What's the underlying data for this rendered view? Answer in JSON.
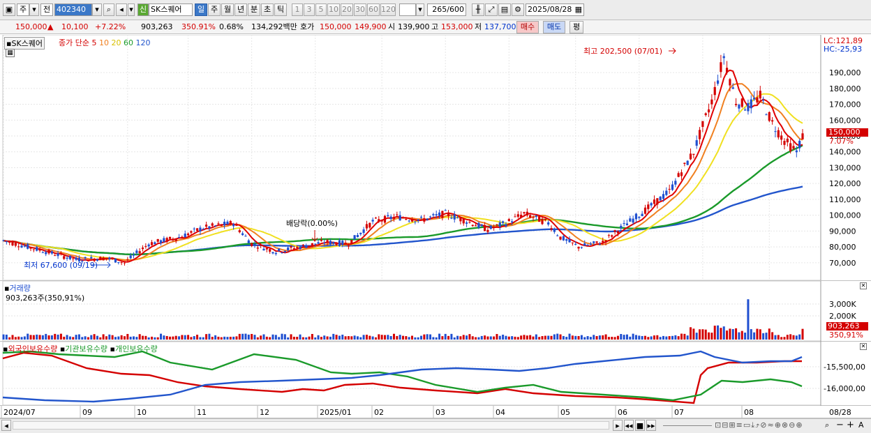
{
  "toolbar": {
    "market_label": "주",
    "prev_label": "전",
    "code": "402340",
    "stock_badge": "신",
    "stock_name": "SK스퀘어",
    "periods": [
      "일",
      "주",
      "월",
      "년",
      "분",
      "초",
      "틱"
    ],
    "intervals": [
      "1",
      "3",
      "5",
      "10",
      "20",
      "30",
      "60",
      "120"
    ],
    "count": "265",
    "count_total": "/600",
    "date": "2025/08/28"
  },
  "quote": {
    "price": "150,000",
    "change": "10,100",
    "change_pct": "+7.22%",
    "volume": "903,263",
    "volume_ratio": "350.91%",
    "turnover": "0.68%",
    "amount": "134,292백만",
    "bid_label": "호가",
    "bid1": "150,000",
    "bid2": "149,900",
    "open_label": "시",
    "open": "139,900",
    "high_label": "고",
    "high": "153,000",
    "low_label": "저",
    "low": "137,700",
    "buy_label": "매수",
    "sell_label": "매도",
    "eval_label": "평"
  },
  "price_pane": {
    "stock_tag": "SK스퀘어",
    "ma_title": "종가 단순",
    "ma_periods": [
      "5",
      "10",
      "20",
      "60",
      "120"
    ],
    "lc": "LC:121,89",
    "hc": "HC:-25,93",
    "high_note": "최고 202,500 (07/01)",
    "low_note": "최저 67,600 (09/19)",
    "dividend_note": "배당락(0.00%)",
    "current_price_tag": "150,000",
    "current_pct_tag": "7.07%",
    "y_ticks": [
      "190,000",
      "180,000",
      "170,000",
      "160,000",
      "150,000",
      "140,000",
      "130,000",
      "120,000",
      "110,000",
      "100,000",
      "90,000",
      "80,000",
      "70,000"
    ]
  },
  "volume_pane": {
    "title": "거래량",
    "value": "903,263주(350,91%)",
    "y_ticks": [
      "3,000K",
      "2,000K"
    ],
    "tag_value": "903,263",
    "tag_pct": "350,91%"
  },
  "holding_pane": {
    "legends": [
      "외국인보유수량",
      "기관보유수량",
      "개인보유수량"
    ],
    "y_ticks": [
      "-15,500,00",
      "-16,000,00"
    ]
  },
  "x_axis": [
    "2024/07",
    "09",
    "10",
    "11",
    "12",
    "2025/01",
    "02",
    "03",
    "04",
    "05",
    "06",
    "07",
    "08",
    "08/28"
  ],
  "colors": {
    "ma5": "#e00000",
    "ma10": "#f08020",
    "ma20": "#f0e020",
    "ma60": "#1a9a2a",
    "ma120": "#2255cc",
    "up": "#d40000",
    "down": "#1f4fd0"
  }
}
